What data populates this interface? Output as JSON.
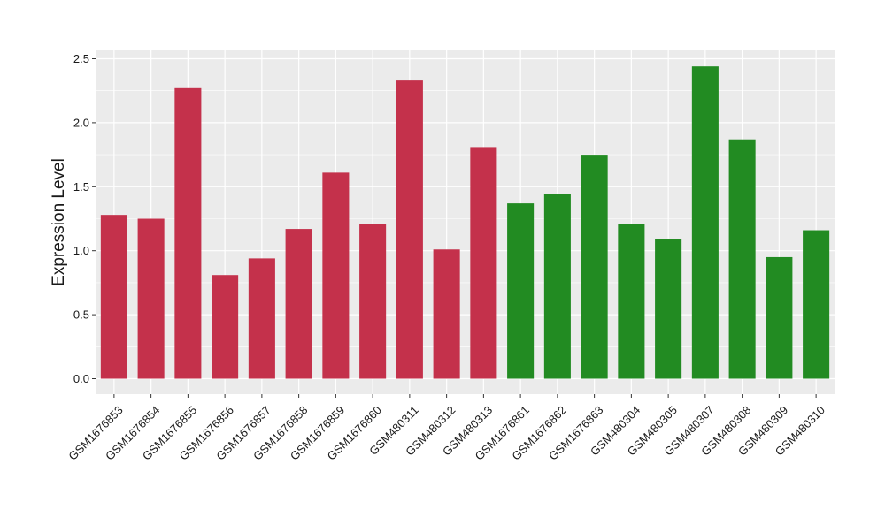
{
  "chart_data": {
    "type": "bar",
    "ylabel": "Expression Level",
    "xlabel": "",
    "ylim": [
      -0.1,
      2.5
    ],
    "yticks": [
      0.0,
      0.5,
      1.0,
      1.5,
      2.0,
      2.5
    ],
    "ytick_labels": [
      "0.0",
      "0.5",
      "1.0",
      "1.5",
      "2.0",
      "2.5"
    ],
    "grid": true,
    "legend": "none",
    "categories": [
      "GSM1676853",
      "GSM1676854",
      "GSM1676855",
      "GSM1676856",
      "GSM1676857",
      "GSM1676858",
      "GSM1676859",
      "GSM1676860",
      "GSM480311",
      "GSM480312",
      "GSM480313",
      "GSM1676861",
      "GSM1676862",
      "GSM1676863",
      "GSM480304",
      "GSM480305",
      "GSM480307",
      "GSM480308",
      "GSM480309",
      "GSM480310"
    ],
    "values": [
      1.28,
      1.25,
      2.27,
      0.81,
      0.94,
      1.17,
      1.61,
      1.21,
      2.33,
      1.01,
      1.81,
      1.37,
      1.44,
      1.75,
      1.21,
      1.09,
      2.44,
      1.87,
      0.95,
      1.16
    ],
    "groups": [
      "red",
      "red",
      "red",
      "red",
      "red",
      "red",
      "red",
      "red",
      "red",
      "red",
      "red",
      "green",
      "green",
      "green",
      "green",
      "green",
      "green",
      "green",
      "green",
      "green"
    ],
    "colors": {
      "red": "#c4314b",
      "green": "#228b22",
      "panel": "#ebebeb",
      "grid": "#ffffff",
      "text": "#1a1a1a"
    }
  }
}
